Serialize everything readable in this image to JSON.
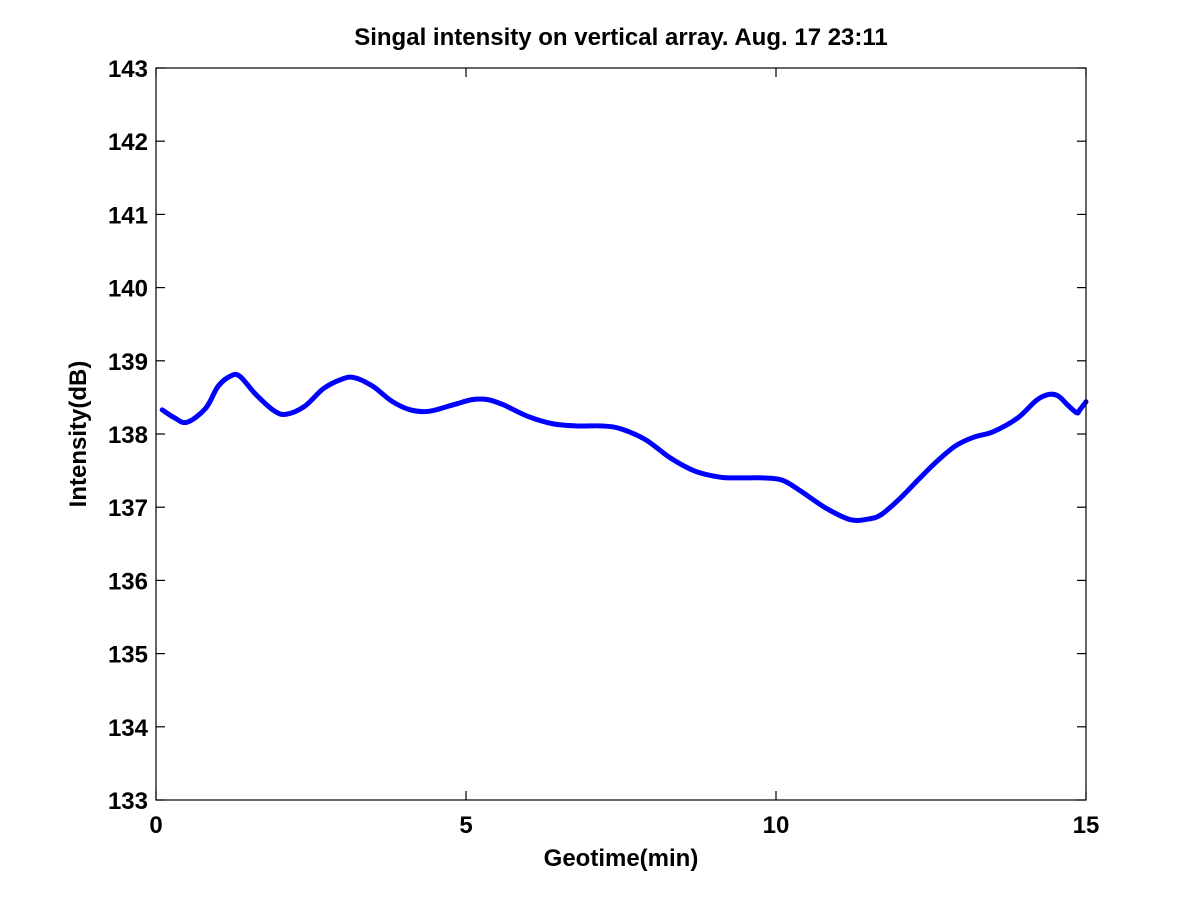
{
  "chart_data": {
    "type": "line",
    "title": "Singal intensity on vertical array. Aug. 17 23:11",
    "xlabel": "Geotime(min)",
    "ylabel": "Intensity(dB)",
    "xlim": [
      0,
      15
    ],
    "ylim": [
      133,
      143
    ],
    "xticks": [
      0,
      5,
      10,
      15
    ],
    "yticks": [
      133,
      134,
      135,
      136,
      137,
      138,
      139,
      140,
      141,
      142,
      143
    ],
    "grid": false,
    "series_color": "#0000ff",
    "series": [
      {
        "x": [
          0.1,
          0.3,
          0.5,
          0.8,
          1.0,
          1.2,
          1.35,
          1.6,
          1.9,
          2.1,
          2.4,
          2.7,
          3.0,
          3.2,
          3.5,
          3.8,
          4.1,
          4.4,
          4.8,
          5.1,
          5.35,
          5.6,
          6.0,
          6.4,
          6.8,
          7.2,
          7.5,
          7.9,
          8.3,
          8.7,
          9.1,
          9.4,
          9.8,
          10.1,
          10.4,
          10.8,
          11.2,
          11.5,
          11.7,
          12.0,
          12.3,
          12.6,
          12.9,
          13.2,
          13.5,
          13.9,
          14.2,
          14.4,
          14.55,
          14.7,
          14.85,
          14.9,
          15.0
        ],
        "y": [
          138.33,
          138.22,
          138.16,
          138.35,
          138.65,
          138.79,
          138.79,
          138.55,
          138.32,
          138.27,
          138.38,
          138.62,
          138.75,
          138.77,
          138.65,
          138.45,
          138.33,
          138.31,
          138.4,
          138.47,
          138.47,
          138.4,
          138.24,
          138.14,
          138.11,
          138.11,
          138.07,
          137.92,
          137.67,
          137.49,
          137.41,
          137.4,
          137.4,
          137.37,
          137.22,
          136.99,
          136.83,
          136.84,
          136.9,
          137.12,
          137.38,
          137.63,
          137.84,
          137.96,
          138.03,
          138.22,
          138.46,
          138.54,
          138.52,
          138.4,
          138.29,
          138.33,
          138.44
        ]
      }
    ]
  }
}
